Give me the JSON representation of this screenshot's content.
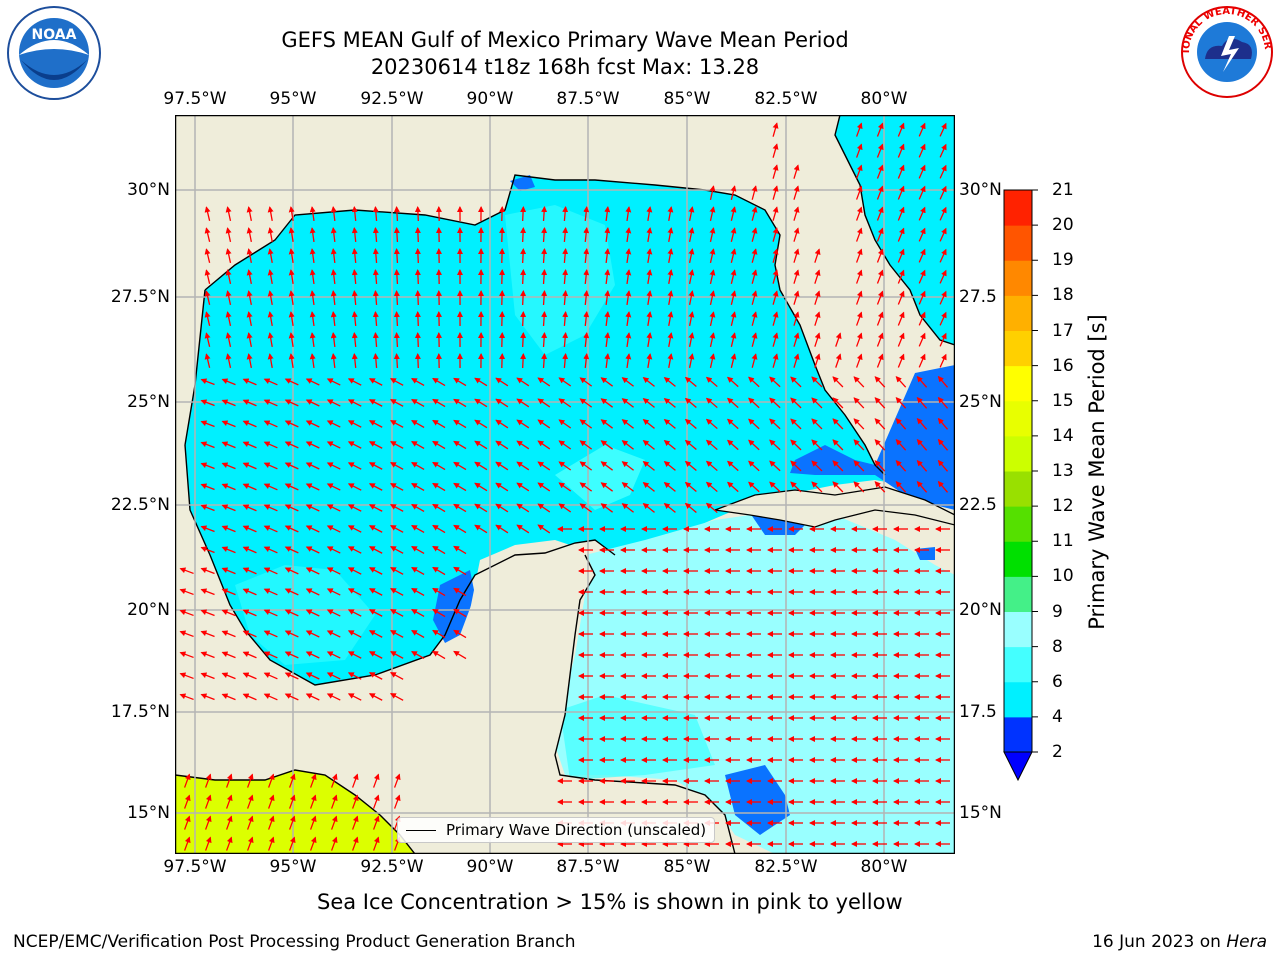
{
  "title": {
    "line1": "GEFS MEAN Gulf of Mexico Primary Wave Mean Period",
    "line2": "20230614 t18z 168h fcst   Max: 13.28"
  },
  "axes": {
    "lon_ticks": [
      "97.5°W",
      "95°W",
      "92.5°W",
      "90°W",
      "87.5°W",
      "85°W",
      "82.5°W",
      "80°W"
    ],
    "lat_ticks_left": [
      "30°N",
      "27.5°N",
      "25°N",
      "22.5°N",
      "20°N",
      "17.5°N",
      "15°N"
    ],
    "lat_ticks_right": [
      "30°N",
      "27.5",
      "25°N",
      "22.5",
      "20°N",
      "17.5",
      "15°N"
    ]
  },
  "colorbar": {
    "title": "Primary Wave Mean Period [s]",
    "levels": [
      "2",
      "4",
      "6",
      "8",
      "9",
      "10",
      "11",
      "12",
      "13",
      "14",
      "15",
      "16",
      "17",
      "18",
      "19",
      "20",
      "21"
    ],
    "colors": [
      "#0033ff",
      "#00f0ff",
      "#44ffff",
      "#99ffff",
      "#44f088",
      "#00e000",
      "#55e000",
      "#99e000",
      "#ccff00",
      "#e8ff00",
      "#ffff00",
      "#ffd000",
      "#ffb000",
      "#ff8800",
      "#ff5500",
      "#ff2200"
    ],
    "under_color": "#0000ff"
  },
  "legend": {
    "label": "Primary Wave Direction (unscaled)"
  },
  "caption": "Sea Ice Concentration > 15% is shown in pink to yellow",
  "footer": {
    "left": "NCEP/EMC/Verification Post Processing Product Generation Branch",
    "right_date": "16 Jun 2023 on ",
    "right_host": "Hera"
  },
  "logos": {
    "left": "NOAA",
    "right_label": "NATIONAL WEATHER SERVICE"
  },
  "colors": {
    "land": "#efedda",
    "sea_4_6": "#00f0ff",
    "sea_6_8": "#44ffff",
    "sea_8_9": "#99ffff",
    "sea_2_4": "#0a73ff",
    "yellow_13_14": "#dcff00",
    "arrow": "#ff0000",
    "grid": "#b4b4b4"
  }
}
